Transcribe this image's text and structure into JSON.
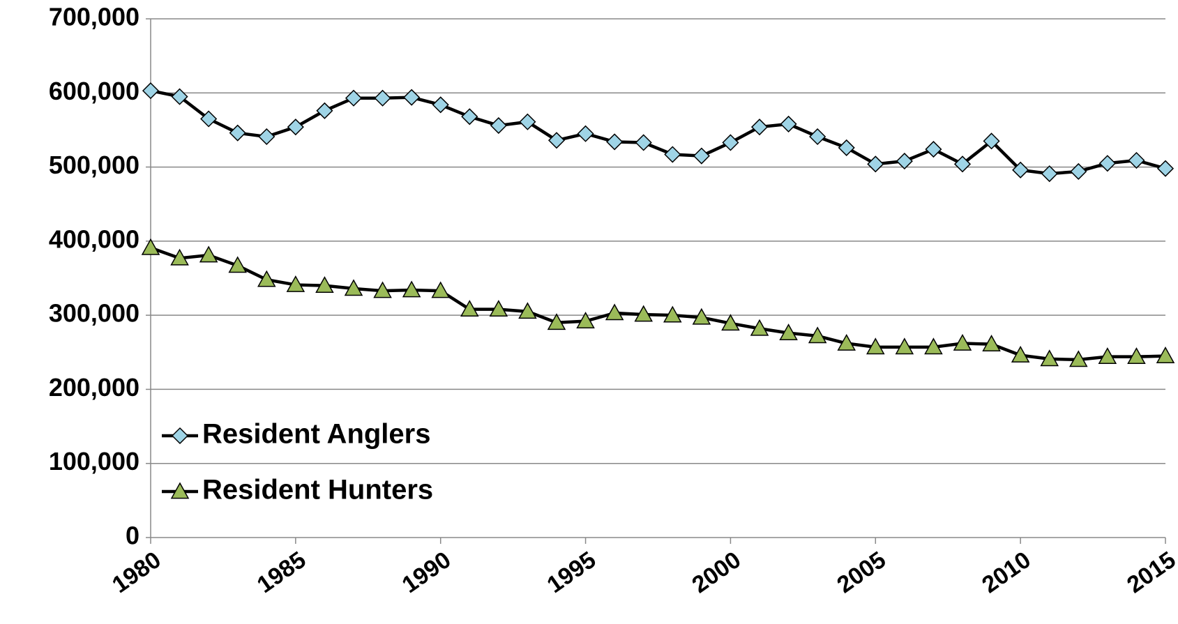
{
  "chart_data": {
    "type": "line",
    "x": [
      1980,
      1981,
      1982,
      1983,
      1984,
      1985,
      1986,
      1987,
      1988,
      1989,
      1990,
      1991,
      1992,
      1993,
      1994,
      1995,
      1996,
      1997,
      1998,
      1999,
      2000,
      2001,
      2002,
      2003,
      2004,
      2005,
      2006,
      2007,
      2008,
      2009,
      2010,
      2011,
      2012,
      2013,
      2014,
      2015
    ],
    "series": [
      {
        "name": "Resident Anglers",
        "color": "#9fd4e6",
        "marker": "diamond",
        "values": [
          603000,
          595000,
          565000,
          546000,
          541000,
          554000,
          576000,
          593000,
          593000,
          594000,
          584000,
          568000,
          556000,
          561000,
          536000,
          545000,
          534000,
          533000,
          517000,
          515000,
          533000,
          554000,
          558000,
          541000,
          526000,
          504000,
          508000,
          524000,
          504000,
          535000,
          496000,
          491000,
          494000,
          505000,
          509000,
          498000
        ]
      },
      {
        "name": "Resident Hunters",
        "color": "#9bbb59",
        "marker": "triangle",
        "values": [
          391000,
          377000,
          381000,
          367000,
          348000,
          341000,
          340000,
          336000,
          333000,
          334000,
          333000,
          308000,
          308000,
          305000,
          290000,
          292000,
          303000,
          301000,
          300000,
          297000,
          289000,
          282000,
          276000,
          272000,
          262000,
          257000,
          257000,
          257000,
          262000,
          261000,
          246000,
          241000,
          240000,
          244000,
          244000,
          245000
        ]
      }
    ],
    "xlim": [
      1980,
      2015
    ],
    "xticks": [
      1980,
      1985,
      1990,
      1995,
      2000,
      2005,
      2010,
      2015
    ],
    "ylim": [
      0,
      700000
    ],
    "yticks": [
      0,
      {
        "value": 100000,
        "label": "100,000"
      },
      {
        "value": 200000,
        "label": "200,000"
      },
      {
        "value": 300000,
        "label": "300,000"
      },
      {
        "value": 400000,
        "label": "400,000"
      },
      {
        "value": 500000,
        "label": "500,000"
      },
      {
        "value": 600000,
        "label": "600,000"
      },
      {
        "value": 700000,
        "label": "700,000"
      }
    ],
    "grid": true,
    "legend": "lower left"
  }
}
